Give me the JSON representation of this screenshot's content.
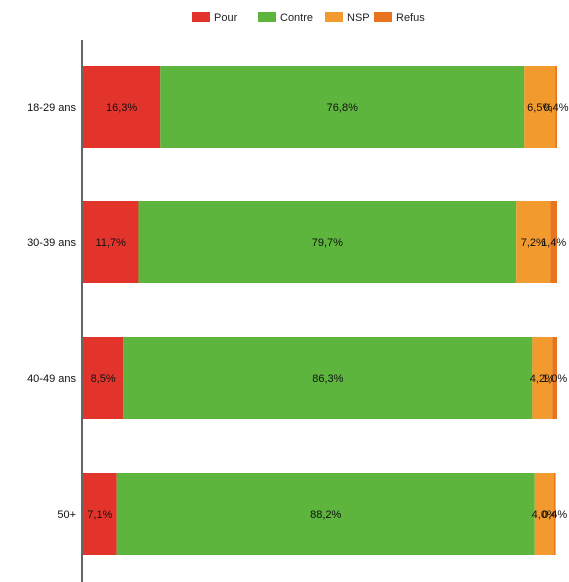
{
  "chart_data": {
    "type": "bar",
    "orientation": "horizontal",
    "stacked": true,
    "legend_position": "top",
    "grid": false,
    "categories": [
      "18-29 ans",
      "30-39 ans",
      "40-49 ans",
      "50+"
    ],
    "series": [
      {
        "name": "Pour",
        "color": "#e3342c",
        "values": [
          16.3,
          11.7,
          8.5,
          7.1
        ],
        "labels": [
          "16,3%",
          "11,7%",
          "8,5%",
          "7,1%"
        ]
      },
      {
        "name": "Contre",
        "color": "#5db53e",
        "values": [
          76.8,
          79.7,
          86.3,
          88.2
        ],
        "labels": [
          "76,8%",
          "79,7%",
          "86,3%",
          "88,2%"
        ]
      },
      {
        "name": "NSP",
        "color": "#f29a2e",
        "values": [
          6.5,
          7.2,
          4.2,
          4.0
        ],
        "labels": [
          "6,5%",
          "7,2%",
          "4,2%",
          "4,0%"
        ]
      },
      {
        "name": "Refus",
        "color": "#e8741f",
        "values": [
          0.4,
          1.4,
          1.0,
          0.4
        ],
        "labels": [
          "0,4%",
          "1,4%",
          "1,0%",
          "0,4%"
        ]
      }
    ],
    "xlim": [
      0,
      100
    ]
  }
}
